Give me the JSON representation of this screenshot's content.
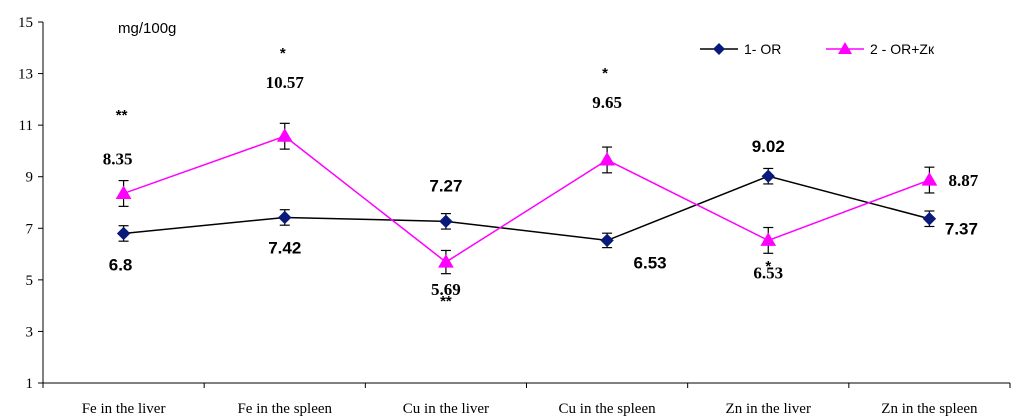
{
  "chart_data": {
    "type": "line",
    "unit_label": "mg/100g",
    "categories": [
      "Fe in the liver",
      "Fe in the spleen",
      "Cu in the liver",
      "Cu in the spleen",
      "Zn in the liver",
      "Zn in the spleen"
    ],
    "ylim": [
      1,
      15
    ],
    "yticks": [
      1,
      3,
      5,
      7,
      9,
      11,
      13,
      15
    ],
    "grid": false,
    "legend_position": "top-right",
    "series": [
      {
        "name": "1- OR",
        "color": "#000000",
        "marker_color": "#0a1a7a",
        "marker": "diamond",
        "values": [
          6.8,
          7.42,
          7.27,
          6.53,
          9.02,
          7.37
        ],
        "errors": [
          0.3,
          0.3,
          0.3,
          0.28,
          0.3,
          0.3
        ],
        "labels": [
          "6.8",
          "7.42",
          "7.27",
          "6.53",
          "9.02",
          "7.37"
        ]
      },
      {
        "name": "2 - OR+Zк",
        "color": "#ff00ff",
        "marker_color": "#ff00ff",
        "marker": "triangle",
        "values": [
          8.35,
          10.57,
          5.69,
          9.65,
          6.53,
          8.87
        ],
        "errors": [
          0.5,
          0.5,
          0.45,
          0.5,
          0.5,
          0.5
        ],
        "labels": [
          "8.35",
          "10.57",
          "5.69",
          "9.65",
          "6.53",
          "8.87"
        ]
      }
    ],
    "significance": [
      {
        "category_index": 0,
        "text": "**"
      },
      {
        "category_index": 1,
        "text": "*"
      },
      {
        "category_index": 2,
        "text": "**"
      },
      {
        "category_index": 3,
        "text": "*"
      },
      {
        "category_index": 4,
        "text": "*"
      }
    ]
  }
}
